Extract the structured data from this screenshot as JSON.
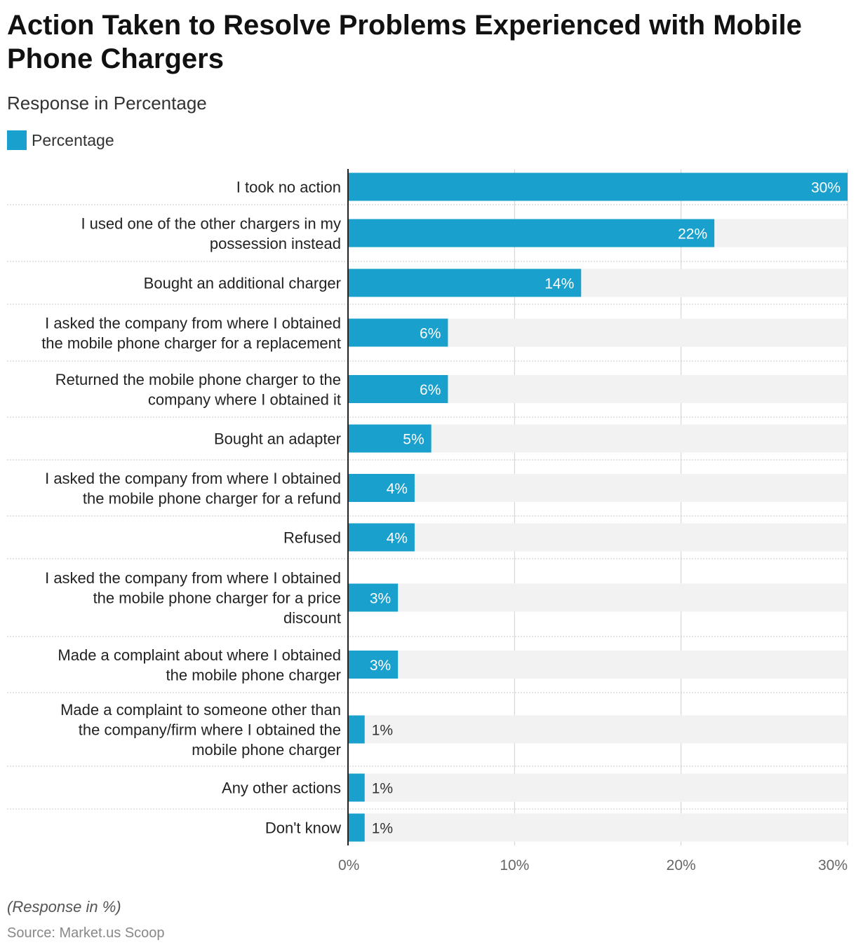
{
  "title": "Action Taken to Resolve Problems Experienced with Mobile Phone Chargers",
  "subtitle": "Response in Percentage",
  "legend": {
    "label": "Percentage",
    "color": "#1aa0cc"
  },
  "note": "(Response in %)",
  "source": "Source: Market.us Scoop",
  "chart_data": {
    "type": "bar",
    "orientation": "horizontal",
    "series": [
      {
        "name": "Percentage",
        "color": "#1aa0cc",
        "values": [
          30,
          22,
          14,
          6,
          6,
          5,
          4,
          4,
          3,
          3,
          1,
          1,
          1
        ]
      }
    ],
    "categories": [
      [
        "I took no action"
      ],
      [
        "I used one of the other chargers in my",
        "possession instead"
      ],
      [
        "Bought an additional charger"
      ],
      [
        "I asked the company from where I obtained",
        "the mobile phone charger for a replacement"
      ],
      [
        "Returned the mobile phone charger to the",
        "company where I obtained it"
      ],
      [
        "Bought an adapter"
      ],
      [
        "I asked the company from where I obtained",
        "the mobile phone charger for a refund"
      ],
      [
        "Refused"
      ],
      [
        "I asked the company from where I obtained",
        "the mobile phone charger for a price",
        "discount"
      ],
      [
        "Made a complaint about where I obtained",
        "the mobile phone charger"
      ],
      [
        "Made a complaint to someone other than",
        "the company/firm where I obtained the",
        "mobile phone charger"
      ],
      [
        "Any other actions"
      ],
      [
        "Don't know"
      ]
    ],
    "value_labels": [
      "30%",
      "22%",
      "14%",
      "6%",
      "6%",
      "5%",
      "4%",
      "4%",
      "3%",
      "3%",
      "1%",
      "1%",
      "1%"
    ],
    "xlim": [
      0,
      30
    ],
    "xticks": [
      0,
      10,
      20,
      30
    ],
    "xtick_labels": [
      "0%",
      "10%",
      "20%",
      "30%"
    ],
    "grid": true,
    "legend_position": "top-left"
  }
}
